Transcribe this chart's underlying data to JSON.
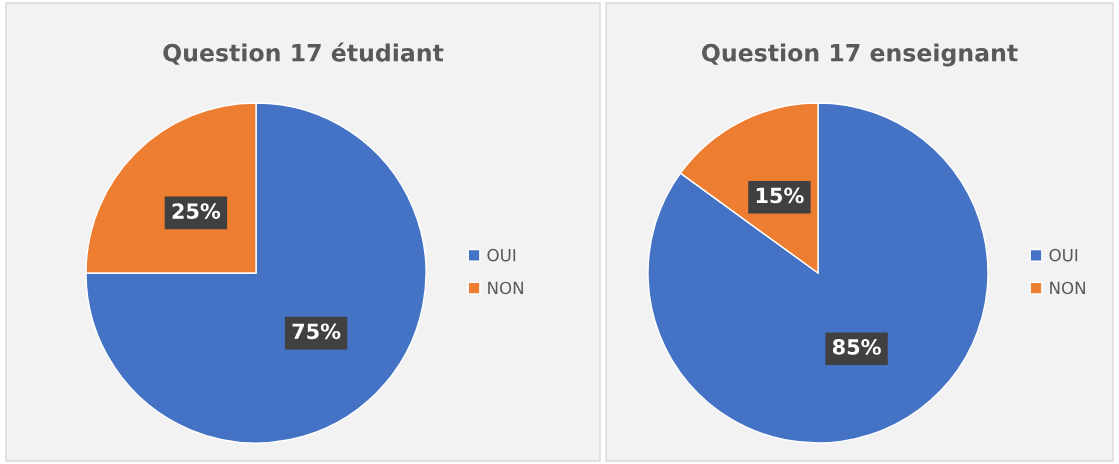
{
  "chart_data": [
    {
      "type": "pie",
      "title": "Question 17 étudiant",
      "categories": [
        "OUI",
        "NON"
      ],
      "values": [
        75,
        25
      ],
      "colors": [
        "#4472c4",
        "#ed7d31"
      ],
      "value_labels": [
        "75%",
        "25%"
      ],
      "legend": "right"
    },
    {
      "type": "pie",
      "title": "Question 17 enseignant",
      "categories": [
        "OUI",
        "NON"
      ],
      "values": [
        85,
        15
      ],
      "colors": [
        "#4472c4",
        "#ed7d31"
      ],
      "value_labels": [
        "85%",
        "15%"
      ],
      "legend": "right"
    }
  ]
}
